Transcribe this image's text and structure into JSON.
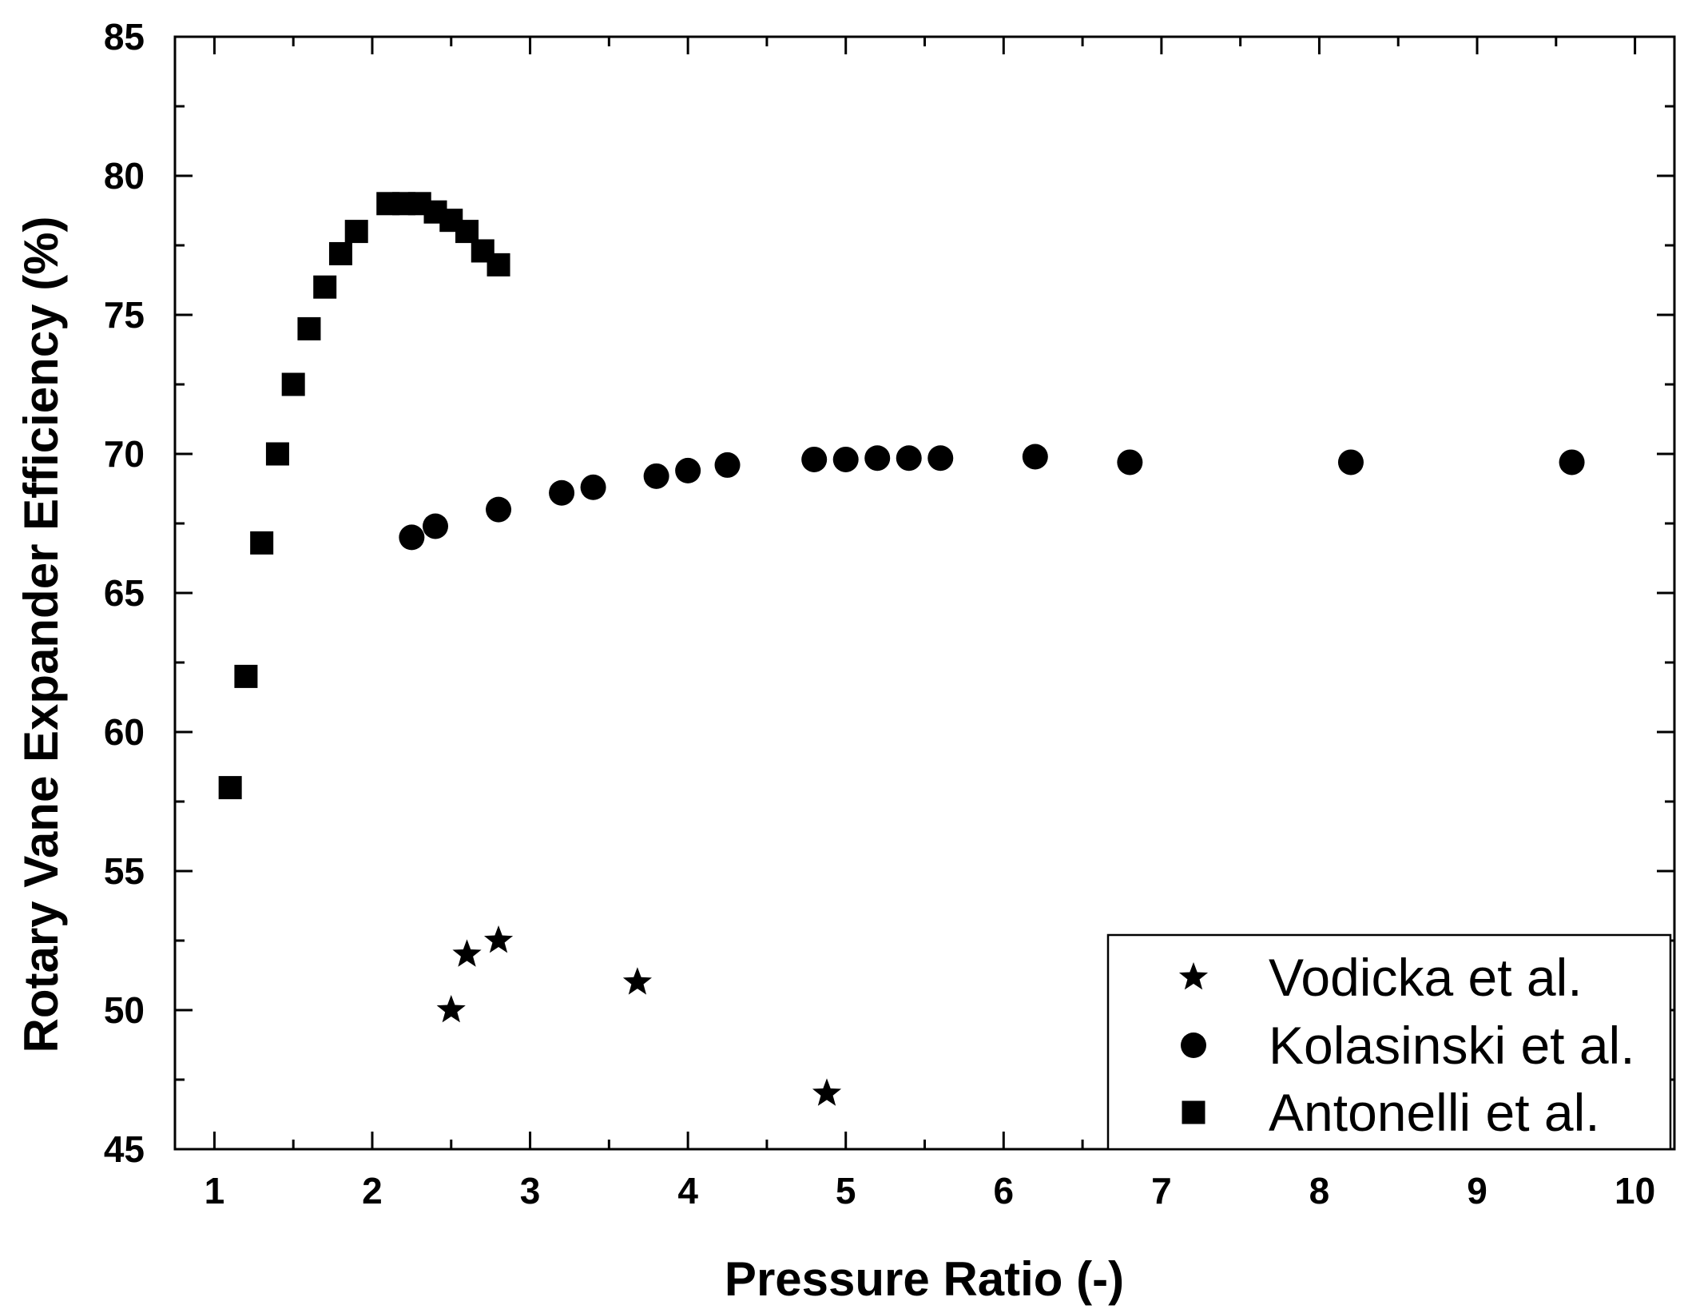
{
  "chart_data": {
    "type": "scatter",
    "title": "",
    "xlabel": "Pressure Ratio (-)",
    "ylabel": "Rotary Vane Expander Efficiency (%)",
    "xlim": [
      0.75,
      10.25
    ],
    "ylim": [
      45,
      85
    ],
    "xticks": [
      1,
      2,
      3,
      4,
      5,
      6,
      7,
      8,
      9,
      10
    ],
    "yticks": [
      45,
      50,
      55,
      60,
      65,
      70,
      75,
      80,
      85
    ],
    "xtick_labels": [
      "1",
      "2",
      "3",
      "4",
      "5",
      "6",
      "7",
      "8",
      "9",
      "10"
    ],
    "ytick_labels": [
      "45",
      "50",
      "55",
      "60",
      "65",
      "70",
      "75",
      "80",
      "85"
    ],
    "grid": false,
    "legend_position": "bottom-right",
    "series": [
      {
        "name": "Vodicka et al.",
        "marker": "star",
        "color": "#000000",
        "points": [
          [
            2.5,
            50.0
          ],
          [
            2.6,
            52.0
          ],
          [
            2.8,
            52.5
          ],
          [
            3.68,
            51.0
          ],
          [
            4.88,
            47.0
          ]
        ]
      },
      {
        "name": "Kolasinski et al.",
        "marker": "circle",
        "color": "#000000",
        "points": [
          [
            2.25,
            67.0
          ],
          [
            2.4,
            67.4
          ],
          [
            2.8,
            68.0
          ],
          [
            3.2,
            68.6
          ],
          [
            3.4,
            68.8
          ],
          [
            3.8,
            69.2
          ],
          [
            4.0,
            69.4
          ],
          [
            4.25,
            69.6
          ],
          [
            4.8,
            69.8
          ],
          [
            5.0,
            69.8
          ],
          [
            5.2,
            69.85
          ],
          [
            5.4,
            69.85
          ],
          [
            5.6,
            69.85
          ],
          [
            6.2,
            69.9
          ],
          [
            6.8,
            69.7
          ],
          [
            8.2,
            69.7
          ],
          [
            9.6,
            69.7
          ]
        ]
      },
      {
        "name": "Antonelli et al.",
        "marker": "square",
        "color": "#000000",
        "points": [
          [
            1.1,
            58.0
          ],
          [
            1.2,
            62.0
          ],
          [
            1.3,
            66.8
          ],
          [
            1.4,
            70.0
          ],
          [
            1.5,
            72.5
          ],
          [
            1.6,
            74.5
          ],
          [
            1.7,
            76.0
          ],
          [
            1.8,
            77.2
          ],
          [
            1.9,
            78.0
          ],
          [
            2.1,
            79.0
          ],
          [
            2.2,
            79.0
          ],
          [
            2.3,
            79.0
          ],
          [
            2.4,
            78.7
          ],
          [
            2.5,
            78.4
          ],
          [
            2.6,
            78.0
          ],
          [
            2.7,
            77.3
          ],
          [
            2.8,
            76.8
          ]
        ]
      }
    ]
  }
}
